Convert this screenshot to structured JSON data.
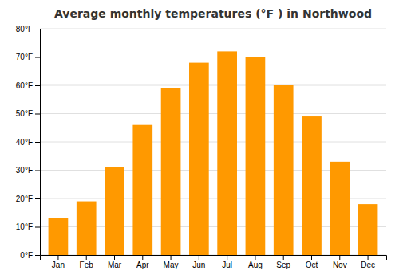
{
  "chart_data": {
    "type": "bar",
    "title": "Average monthly temperatures (°F ) in Northwood",
    "categories": [
      "Jan",
      "Feb",
      "Mar",
      "Apr",
      "May",
      "Jun",
      "Jul",
      "Aug",
      "Sep",
      "Oct",
      "Nov",
      "Dec"
    ],
    "values": [
      13,
      19,
      31,
      46,
      59,
      68,
      72,
      70,
      60,
      49,
      33,
      18
    ],
    "color": "#FF9900",
    "ylim": [
      0,
      80
    ],
    "yticks": [
      {
        "value": 0,
        "label": "0°F"
      },
      {
        "value": 10,
        "label": "10°F"
      },
      {
        "value": 20,
        "label": "20°F"
      },
      {
        "value": 30,
        "label": "30°F"
      },
      {
        "value": 40,
        "label": "40°F"
      },
      {
        "value": 50,
        "label": "50°F"
      },
      {
        "value": 60,
        "label": "60°F"
      },
      {
        "value": 70,
        "label": "70°F"
      },
      {
        "value": 80,
        "label": "80°F"
      }
    ],
    "grid": true
  }
}
